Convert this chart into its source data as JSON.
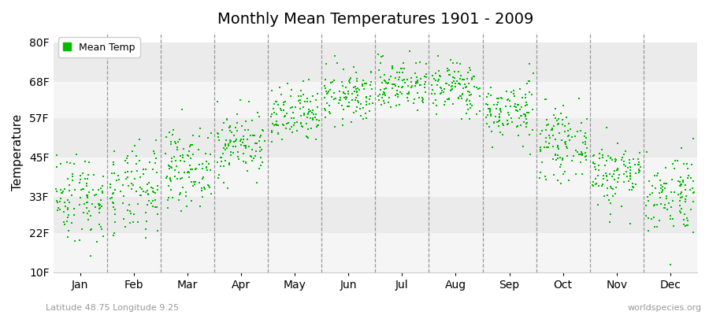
{
  "title": "Monthly Mean Temperatures 1901 - 2009",
  "ylabel": "Temperature",
  "subtitle_left": "Latitude 48.75 Longitude 9.25",
  "subtitle_right": "worldspecies.org",
  "dot_color": "#00bb00",
  "background_color": "#ffffff",
  "band_colors": [
    "#f5f5f5",
    "#ebebeb"
  ],
  "months": [
    "Jan",
    "Feb",
    "Mar",
    "Apr",
    "May",
    "Jun",
    "Jul",
    "Aug",
    "Sep",
    "Oct",
    "Nov",
    "Dec"
  ],
  "month_mean_C": [
    0.5,
    1.2,
    5.5,
    9.5,
    14.0,
    17.5,
    19.5,
    19.0,
    15.0,
    9.5,
    4.5,
    1.2
  ],
  "month_std_C": [
    3.8,
    3.8,
    3.2,
    2.8,
    2.5,
    2.3,
    2.2,
    2.3,
    2.5,
    2.8,
    2.8,
    3.5
  ],
  "yticks_F": [
    10,
    22,
    33,
    45,
    57,
    68,
    80
  ],
  "ylim_F": [
    10,
    83
  ],
  "n_years": 109,
  "legend_label": "Mean Temp",
  "figsize": [
    9.0,
    4.0
  ],
  "dpi": 100
}
